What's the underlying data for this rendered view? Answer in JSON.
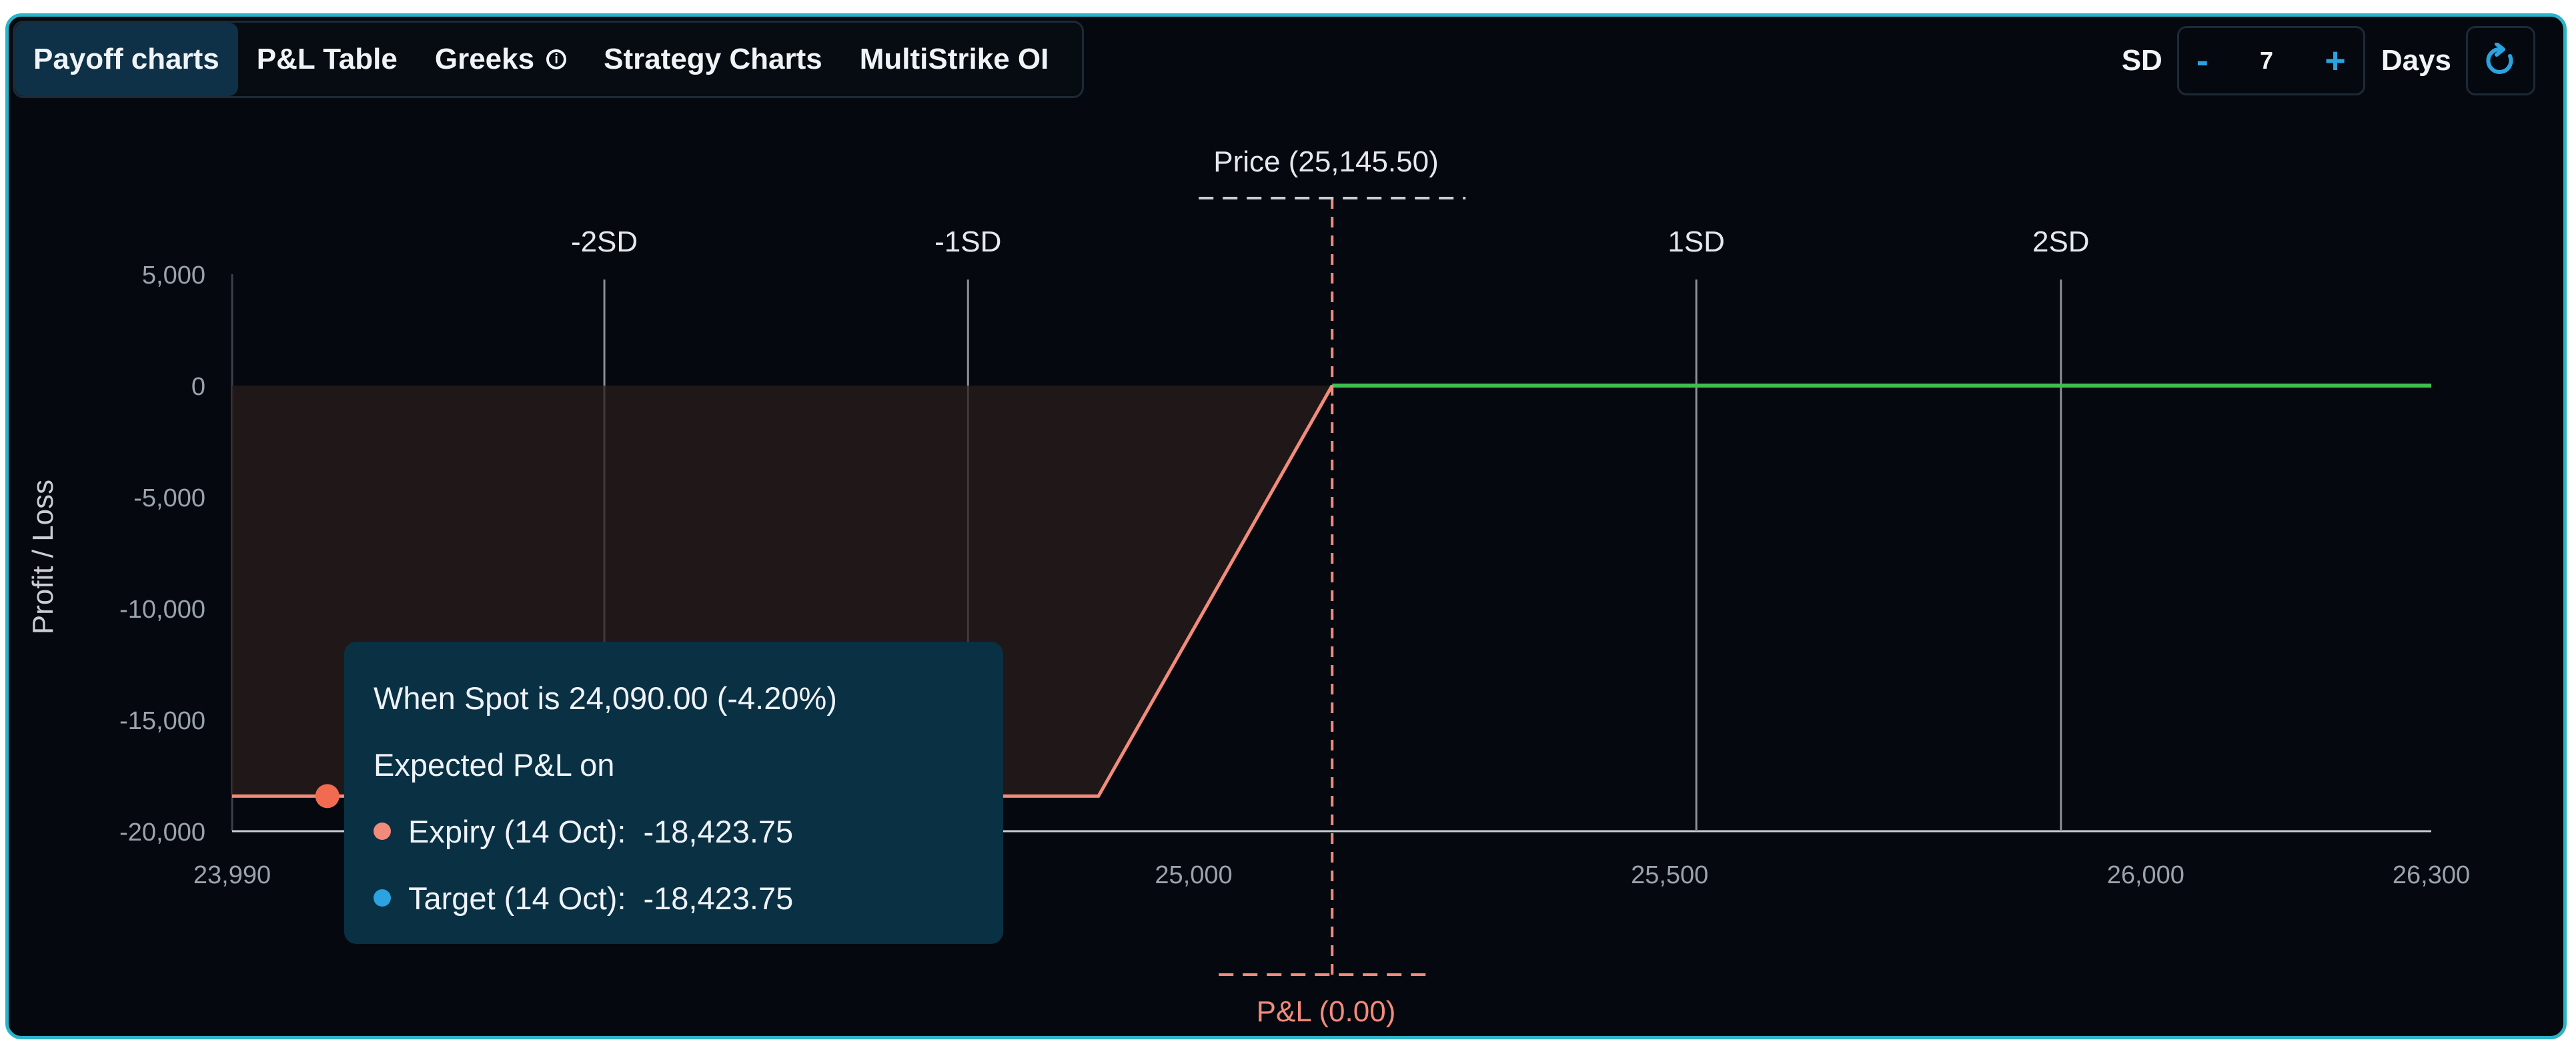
{
  "tabs": [
    {
      "label": "Payoff charts",
      "active": true
    },
    {
      "label": "P&L Table",
      "active": false
    },
    {
      "label": "Greeks",
      "active": false,
      "info_icon": "info-icon"
    },
    {
      "label": "Strategy Charts",
      "active": false
    },
    {
      "label": "MultiStrike OI",
      "active": false
    }
  ],
  "controls": {
    "sd_label": "SD",
    "minus": "-",
    "value": "7",
    "plus": "+",
    "days_label": "Days",
    "refresh_icon": "refresh-icon"
  },
  "markers": {
    "price_label": "Price (25,145.50)",
    "pnl_label": "P&L (0.00)"
  },
  "tooltip": {
    "title": "When Spot is 24,090.00 (-4.20%)",
    "subtitle": "Expected P&L on",
    "expiry_label": "Expiry (14 Oct):",
    "expiry_value": "-18,423.75",
    "target_label": "Target (14 Oct):",
    "target_value": "-18,423.75"
  },
  "colors": {
    "loss": "#f28b7b",
    "profit": "#3fbf4f",
    "target": "#2aa3e0",
    "accent": "#2bb3c8"
  },
  "chart_data": {
    "type": "line",
    "ylabel": "Profit / Loss",
    "xlim": [
      23990,
      26300
    ],
    "ylim": [
      -20000,
      5000
    ],
    "x_ticks": [
      23990,
      25000,
      25500,
      26000,
      26300
    ],
    "x_tick_labels": [
      "23,990",
      "25,000",
      "25,500",
      "26,000",
      "26,300"
    ],
    "y_ticks": [
      5000,
      0,
      -5000,
      -10000,
      -15000,
      -20000
    ],
    "y_tick_labels": [
      "5,000",
      "0",
      "-5,000",
      "-10,000",
      "-15,000",
      "-20,000"
    ],
    "sd_lines": [
      {
        "label": "-2SD",
        "x": 24381
      },
      {
        "label": "-1SD",
        "x": 24763
      },
      {
        "label": "1SD",
        "x": 25528
      },
      {
        "label": "2SD",
        "x": 25911
      }
    ],
    "price": 25145.5,
    "series": [
      {
        "x": [
          23990,
          24900,
          25145.5,
          26300
        ],
        "y": [
          -18423.75,
          -18423.75,
          0,
          0
        ]
      }
    ],
    "hover_point": {
      "x": 24090,
      "y": -18423.75
    }
  }
}
